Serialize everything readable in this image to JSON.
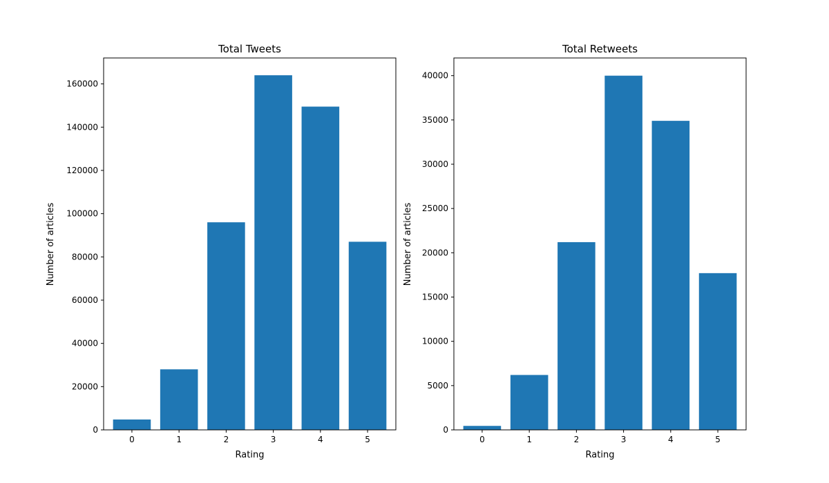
{
  "chart_data": [
    {
      "type": "bar",
      "title": "Total Tweets",
      "xlabel": "Rating",
      "ylabel": "Number of articles",
      "categories": [
        "0",
        "1",
        "2",
        "3",
        "4",
        "5"
      ],
      "values": [
        4800,
        28000,
        96000,
        164000,
        149500,
        87000
      ],
      "ylim": [
        0,
        172000
      ],
      "yticks": [
        0,
        20000,
        40000,
        60000,
        80000,
        100000,
        120000,
        140000,
        160000
      ],
      "color": "#1f77b4",
      "grid": false
    },
    {
      "type": "bar",
      "title": "Total Retweets",
      "xlabel": "Rating",
      "ylabel": "Number of articles",
      "categories": [
        "0",
        "1",
        "2",
        "3",
        "4",
        "5"
      ],
      "values": [
        450,
        6200,
        21200,
        40000,
        34900,
        17700
      ],
      "ylim": [
        0,
        42000
      ],
      "yticks": [
        0,
        5000,
        10000,
        15000,
        20000,
        25000,
        30000,
        35000,
        40000
      ],
      "color": "#1f77b4",
      "grid": false
    }
  ]
}
